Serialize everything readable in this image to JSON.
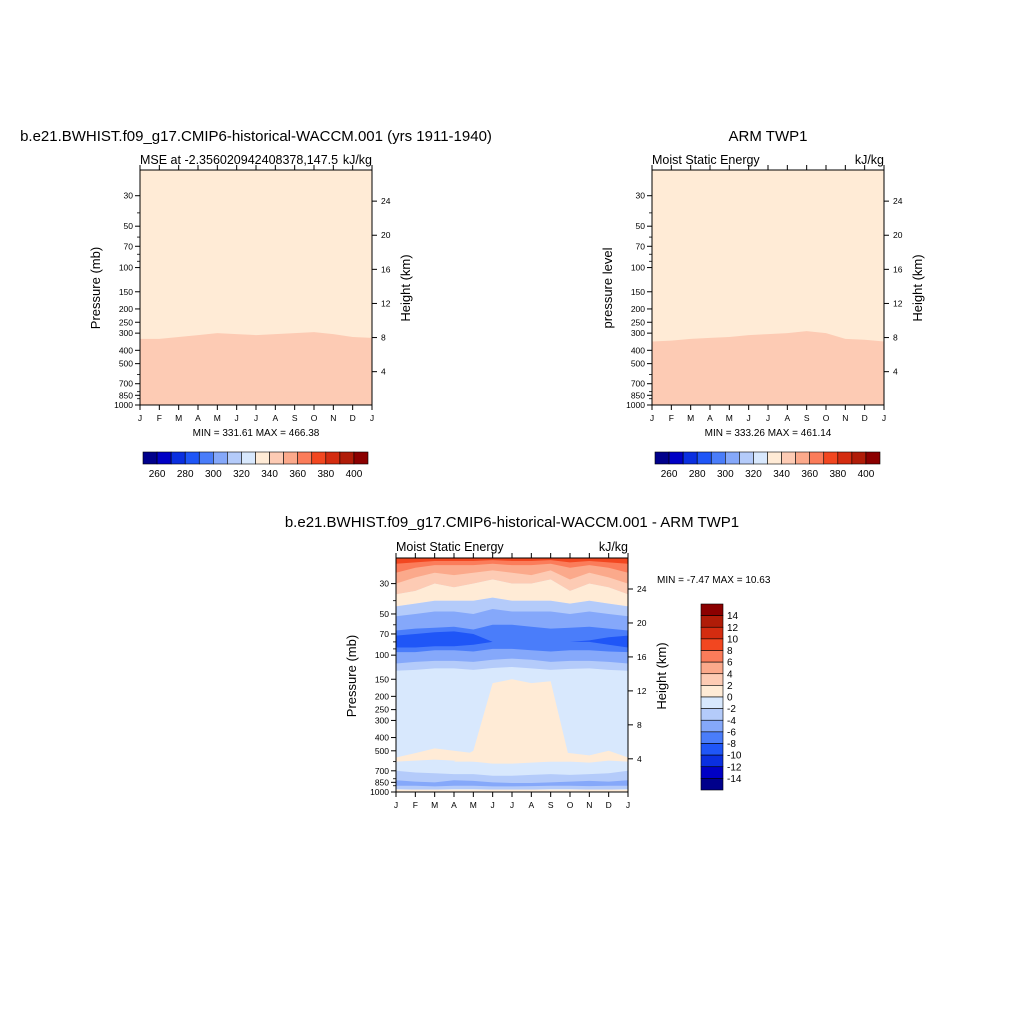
{
  "colors": {
    "full_levels": [
      "#00008b",
      "#0000c5",
      "#0a2fe0",
      "#1f56f7",
      "#4a7dfa",
      "#85a8fa",
      "#b4cbfa",
      "#d8e8fd",
      "#ffebd6",
      "#fdcbb4",
      "#fba98b",
      "#fb7c5a",
      "#f24720",
      "#d42c10",
      "#b01c08",
      "#8b0000"
    ],
    "diff_levels": [
      "#00008b",
      "#0000c5",
      "#0a2fe0",
      "#1f56f7",
      "#4a7dfa",
      "#85a8fa",
      "#b4cbfa",
      "#d8e8fd",
      "#ffebd6",
      "#fdcbb4",
      "#fba98b",
      "#fb7c5a",
      "#f24720",
      "#d42c10",
      "#b01c08",
      "#8b0000"
    ]
  },
  "common": {
    "months": [
      "J",
      "F",
      "M",
      "A",
      "M",
      "J",
      "J",
      "A",
      "S",
      "O",
      "N",
      "D",
      "J"
    ],
    "pressure_ticks": [
      "30",
      "50",
      "70",
      "100",
      "150",
      "200",
      "250",
      "300",
      "400",
      "500",
      "700",
      "850",
      "1000"
    ],
    "height_ticks": [
      "24",
      "20",
      "16",
      "12",
      "8",
      "4"
    ]
  },
  "panels": {
    "model": {
      "title": "b.e21.BWHIST.f09_g17.CMIP6-historical-WACCM.001 (yrs 1911-1940)",
      "left_string": "MSE at -2.356020942408378,147.5",
      "right_string": "kJ/kg",
      "ylabel": "Pressure (mb)",
      "ylabel_right": "Height (km)",
      "minmax": "MIN = 331.61 MAX = 466.38",
      "colorbar_labels": [
        "260",
        "280",
        "300",
        "320",
        "340",
        "360",
        "380",
        "400"
      ]
    },
    "obs": {
      "title": "ARM TWP1",
      "left_string": "Moist Static Energy",
      "right_string": "kJ/kg",
      "ylabel": "pressure level",
      "ylabel_right": "Height (km)",
      "minmax": "MIN = 333.26 MAX = 461.14",
      "colorbar_labels": [
        "260",
        "280",
        "300",
        "320",
        "340",
        "360",
        "380",
        "400"
      ]
    },
    "diff": {
      "title": "b.e21.BWHIST.f09_g17.CMIP6-historical-WACCM.001 - ARM TWP1",
      "left_string": "Moist Static Energy",
      "right_string": "kJ/kg",
      "ylabel": "Pressure (mb)",
      "ylabel_right": "Height (km)",
      "minmax": "MIN =  -7.47 MAX =  10.63",
      "colorbar_labels": [
        "14",
        "12",
        "10",
        "8",
        "6",
        "4",
        "2",
        "0",
        "-2",
        "-4",
        "-6",
        "-8",
        "-10",
        "-12",
        "-14"
      ]
    }
  },
  "chart_data": [
    {
      "type": "heatmap",
      "title": "b.e21.BWHIST.f09_g17.CMIP6-historical-WACCM.001 (yrs 1911-1940)",
      "subtitle": "MSE at -2.356020942408378,147.5",
      "units": "kJ/kg",
      "xlabel": "",
      "ylabel": "Pressure (mb)",
      "ylabel_right": "Height (km)",
      "x": [
        "J",
        "F",
        "M",
        "A",
        "M",
        "J",
        "J",
        "A",
        "S",
        "O",
        "N",
        "D",
        "J"
      ],
      "y_pressure_mb": [
        30,
        50,
        70,
        100,
        150,
        200,
        250,
        300,
        400,
        500,
        700,
        850,
        1000
      ],
      "ylim": [
        1000,
        20
      ],
      "levels": [
        250,
        260,
        270,
        280,
        290,
        300,
        310,
        320,
        330,
        340,
        350,
        360,
        370,
        380,
        390,
        400,
        410
      ],
      "min": 331.61,
      "max": 466.38
    },
    {
      "type": "heatmap",
      "title": "ARM TWP1",
      "subtitle": "Moist Static Energy",
      "units": "kJ/kg",
      "xlabel": "",
      "ylabel": "pressure level",
      "ylabel_right": "Height (km)",
      "x": [
        "J",
        "F",
        "M",
        "A",
        "M",
        "J",
        "J",
        "A",
        "S",
        "O",
        "N",
        "D",
        "J"
      ],
      "y_pressure_mb": [
        30,
        50,
        70,
        100,
        150,
        200,
        250,
        300,
        400,
        500,
        700,
        850,
        1000
      ],
      "ylim": [
        1000,
        20
      ],
      "levels": [
        250,
        260,
        270,
        280,
        290,
        300,
        310,
        320,
        330,
        340,
        350,
        360,
        370,
        380,
        390,
        400,
        410
      ],
      "min": 333.26,
      "max": 461.14
    },
    {
      "type": "heatmap",
      "title": "b.e21.BWHIST.f09_g17.CMIP6-historical-WACCM.001 - ARM TWP1",
      "subtitle": "Moist Static Energy",
      "units": "kJ/kg",
      "xlabel": "",
      "ylabel": "Pressure (mb)",
      "ylabel_right": "Height (km)",
      "x": [
        "J",
        "F",
        "M",
        "A",
        "M",
        "J",
        "J",
        "A",
        "S",
        "O",
        "N",
        "D",
        "J"
      ],
      "y_pressure_mb": [
        30,
        50,
        70,
        100,
        150,
        200,
        250,
        300,
        400,
        500,
        700,
        850,
        1000
      ],
      "ylim": [
        1000,
        20
      ],
      "levels": [
        -14,
        -12,
        -10,
        -8,
        -6,
        -4,
        -2,
        0,
        2,
        4,
        6,
        8,
        10,
        12,
        14
      ],
      "min": -7.47,
      "max": 10.63
    }
  ]
}
